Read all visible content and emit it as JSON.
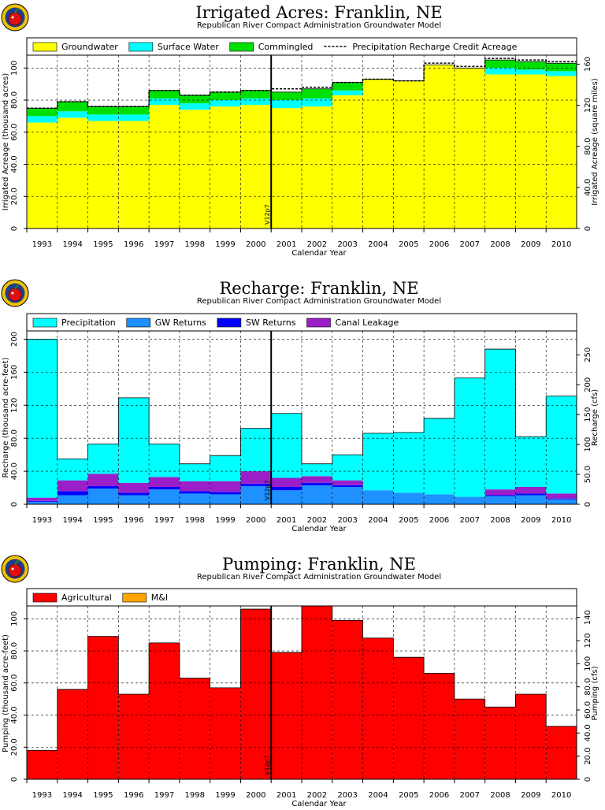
{
  "charts": [
    {
      "id": "irrigated",
      "title": "Irrigated Acres: Franklin, NE",
      "subtitle": "Republican River Compact Administration Groundwater Model",
      "xlabel": "Calendar Year",
      "ylabel": "Irrigated Acreage (thousand acres)",
      "y2label": "Irrigated Acreage (square miles)",
      "vline_label": "V12p7",
      "yticks": [
        "0",
        "20.0",
        "40.0",
        "60.0",
        "80.0",
        "100"
      ],
      "y2ticks": [
        "0",
        "40.0",
        "80.0",
        "120",
        "160"
      ],
      "legend": [
        {
          "label": "Groundwater",
          "color": "#ffff00"
        },
        {
          "label": "Surface Water",
          "color": "#00ffff"
        },
        {
          "label": "Commingled",
          "color": "#00e000"
        },
        {
          "label": "Precipitation Recharge Credit Acreage",
          "color": "#000000",
          "dashed": true
        }
      ]
    },
    {
      "id": "recharge",
      "title": "Recharge: Franklin, NE",
      "subtitle": "Republican River Compact Administration Groundwater Model",
      "xlabel": "Calendar Year",
      "ylabel": "Recharge (thousand acre-feet)",
      "y2label": "Recharge (cfs)",
      "vline_label": "V12p7",
      "yticks": [
        "0",
        "40.0",
        "80.0",
        "120",
        "160",
        "200"
      ],
      "y2ticks": [
        "0",
        "50.0",
        "100",
        "150",
        "200",
        "250"
      ],
      "legend": [
        {
          "label": "Precipitation",
          "color": "#00ffff"
        },
        {
          "label": "GW Returns",
          "color": "#1e90ff"
        },
        {
          "label": "SW Returns",
          "color": "#0000ff"
        },
        {
          "label": "Canal Leakage",
          "color": "#9b1fc8"
        }
      ]
    },
    {
      "id": "pumping",
      "title": "Pumping: Franklin, NE",
      "subtitle": "Republican River Compact Administration Groundwater Model",
      "xlabel": "Calendar Year",
      "ylabel": "Pumping (thousand acre-feet)",
      "y2label": "Pumping (cfs)",
      "vline_label": "V12p7",
      "yticks": [
        "0",
        "20.0",
        "40.0",
        "60.0",
        "80.0",
        "100"
      ],
      "y2ticks": [
        "0",
        "20.0",
        "40.0",
        "60.0",
        "80.0",
        "100",
        "120",
        "140"
      ],
      "legend": [
        {
          "label": "Agricultural",
          "color": "#ff0000"
        },
        {
          "label": "M&I",
          "color": "#ffa500"
        }
      ]
    }
  ],
  "chart_data": [
    {
      "type": "bar",
      "stacked": true,
      "categories": [
        "1993",
        "1994",
        "1995",
        "1996",
        "1997",
        "1998",
        "1999",
        "2000",
        "2001",
        "2002",
        "2003",
        "2004",
        "2005",
        "2006",
        "2007",
        "2008",
        "2009",
        "2010"
      ],
      "ylim": [
        0,
        108
      ],
      "y2lim": [
        0,
        168.75
      ],
      "grid": true,
      "legend_position": "top",
      "vline_at": 2000.5,
      "series": [
        {
          "name": "Groundwater",
          "values": [
            66,
            69,
            67,
            67,
            77,
            74,
            76,
            77,
            75,
            76,
            83,
            93,
            92,
            102,
            100,
            96,
            96,
            95
          ]
        },
        {
          "name": "Surface Water",
          "values": [
            4,
            4,
            4,
            4,
            4,
            4,
            4,
            4,
            5,
            5,
            3,
            0,
            0,
            0,
            0,
            4,
            3,
            3
          ]
        },
        {
          "name": "Commingled",
          "values": [
            5,
            6,
            5,
            5,
            5,
            5,
            5,
            5,
            5,
            6,
            5,
            0,
            0,
            0,
            0,
            5,
            5,
            5
          ]
        }
      ],
      "precip_credit": [
        75,
        79,
        76,
        76,
        86,
        83,
        85,
        86,
        87,
        88,
        91,
        93,
        92,
        103,
        101,
        106,
        105,
        104
      ]
    },
    {
      "type": "bar",
      "stacked": true,
      "categories": [
        "1993",
        "1994",
        "1995",
        "1996",
        "1997",
        "1998",
        "1999",
        "2000",
        "2001",
        "2002",
        "2003",
        "2004",
        "2005",
        "2006",
        "2007",
        "2008",
        "2009",
        "2010"
      ],
      "ylim": [
        0,
        210
      ],
      "y2lim": [
        0,
        290
      ],
      "grid": true,
      "legend_position": "top",
      "vline_at": 2000.5,
      "series": [
        {
          "name": "GW Returns",
          "values": [
            3,
            11,
            19,
            11,
            18,
            13,
            12,
            22,
            17,
            23,
            21,
            17,
            14,
            12,
            9,
            10,
            11,
            6
          ]
        },
        {
          "name": "SW Returns",
          "values": [
            1,
            5,
            3,
            3,
            3,
            3,
            3,
            3,
            4,
            3,
            2,
            0,
            0,
            0,
            0,
            1,
            2,
            1
          ]
        },
        {
          "name": "Canal Leakage",
          "values": [
            4,
            13,
            15,
            12,
            12,
            12,
            13,
            15,
            11,
            8,
            6,
            0,
            0,
            0,
            0,
            7,
            8,
            6
          ]
        },
        {
          "name": "Precipitation",
          "values": [
            192,
            26,
            36,
            103,
            40,
            21,
            31,
            52,
            78,
            15,
            31,
            69,
            73,
            92,
            144,
            170,
            61,
            118
          ]
        }
      ]
    },
    {
      "type": "bar",
      "stacked": true,
      "categories": [
        "1993",
        "1994",
        "1995",
        "1996",
        "1997",
        "1998",
        "1999",
        "2000",
        "2001",
        "2002",
        "2003",
        "2004",
        "2005",
        "2006",
        "2007",
        "2008",
        "2009",
        "2010"
      ],
      "ylim": [
        0,
        108
      ],
      "y2lim": [
        0,
        150
      ],
      "grid": true,
      "legend_position": "top",
      "vline_at": 2000.5,
      "series": [
        {
          "name": "Agricultural",
          "values": [
            18,
            56,
            89,
            53,
            85,
            63,
            57,
            106,
            79,
            108,
            99,
            88,
            76,
            66,
            50,
            45,
            53,
            33
          ]
        },
        {
          "name": "M&I",
          "values": [
            0,
            0,
            0,
            0,
            0,
            0,
            0,
            0,
            0,
            0,
            0,
            0,
            0,
            0,
            0,
            0,
            0,
            0
          ]
        }
      ]
    }
  ]
}
